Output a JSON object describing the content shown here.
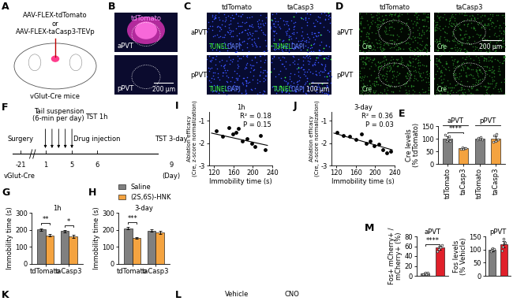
{
  "figure": {
    "panel_letters": [
      "A",
      "B",
      "C",
      "D",
      "E",
      "F",
      "G",
      "H",
      "I",
      "J",
      "K",
      "L",
      "M"
    ],
    "A": {
      "vectors": [
        "AAV-FLEX-tdTomato",
        "or",
        "AAV-FLEX-taCasp3-TEVp"
      ],
      "mouse": "vGlut-Cre mice"
    },
    "B": {
      "title": "tdTomato",
      "rows": [
        "aPVT",
        "pPVT"
      ],
      "scale": "200 μm"
    },
    "C": {
      "columns": [
        "tdTomato",
        "taCasp3"
      ],
      "rows": [
        "aPVT",
        "pPVT"
      ],
      "stain": [
        "TUNEL",
        "DAPI"
      ],
      "scale": "100 μm"
    },
    "D": {
      "columns": [
        "tdTomato",
        "taCasp3"
      ],
      "rows": [
        "aPVT",
        "pPVT"
      ],
      "stain": "Cre",
      "scale": "200 μm"
    },
    "F": {
      "strain": "vGlut-Cre",
      "days": [
        -21,
        1,
        5,
        6,
        9
      ],
      "unit": "(Day)",
      "tail_suspension": {
        "text": "Tail suspension\n(6-min per day)",
        "days": [
          1,
          2,
          3,
          4,
          5
        ]
      },
      "events": [
        {
          "text": "Surgery",
          "day": -21
        },
        {
          "text": "Drug injection",
          "day": 6
        },
        {
          "text": "TST 1h",
          "day": 6
        },
        {
          "text": "TST 3-day",
          "day": 9
        }
      ]
    },
    "bottom_texts": [
      "Vehicle",
      "CNO"
    ]
  },
  "chart_data": [
    {
      "panel": "E",
      "type": "bar",
      "ylabel": "Cre levels\n(% tdTomato)",
      "categories": [
        "tdTomato",
        "taCasp3",
        "tdTomato",
        "taCasp3"
      ],
      "group_labels": [
        "aPVT",
        "pPVT"
      ],
      "values": [
        100,
        62,
        100,
        100
      ],
      "errors": [
        9,
        4,
        3,
        9
      ],
      "colors": [
        "#808080",
        "#f4a340",
        "#808080",
        "#f4a340"
      ],
      "points": [
        [
          115,
          92,
          96,
          108,
          90
        ],
        [
          58,
          66,
          60,
          64,
          63
        ],
        [
          96,
          103,
          99,
          105,
          98
        ],
        [
          88,
          112,
          92,
          118,
          96
        ]
      ],
      "ylim": [
        0,
        150
      ],
      "yticks": [
        0,
        50,
        100,
        150
      ],
      "annotations": [
        {
          "text": "****",
          "between": [
            0,
            1
          ],
          "y": 125
        }
      ]
    },
    {
      "panel": "G",
      "type": "bar",
      "title": "1h",
      "ylabel": "Immobility time (s)",
      "categories": [
        "tdTomato",
        "taCasp3"
      ],
      "series": [
        {
          "name": "Saline",
          "color": "#808080",
          "values": [
            202,
            192
          ],
          "errors": [
            8,
            7
          ]
        },
        {
          "name": "(2S,6S)-HNK",
          "color": "#f4a340",
          "values": [
            168,
            160
          ],
          "errors": [
            7,
            9
          ]
        }
      ],
      "ylim": [
        0,
        300
      ],
      "yticks": [
        0,
        100,
        200,
        300
      ],
      "annotations": [
        {
          "text": "**",
          "category": 0,
          "y": 240
        },
        {
          "text": "*",
          "category": 1,
          "y": 228
        }
      ]
    },
    {
      "panel": "H",
      "type": "bar",
      "title": "3-day",
      "ylabel": "Immobility time (s)",
      "categories": [
        "tdTomato",
        "taCasp3"
      ],
      "series": [
        {
          "name": "Saline",
          "color": "#808080",
          "values": [
            210,
            195
          ],
          "errors": [
            9,
            8
          ]
        },
        {
          "name": "(2S,6S)-HNK",
          "color": "#f4a340",
          "values": [
            152,
            185
          ],
          "errors": [
            6,
            10
          ]
        }
      ],
      "ylim": [
        0,
        300
      ],
      "yticks": [
        0,
        100,
        200,
        300
      ],
      "legend": "upper right",
      "annotations": [
        {
          "text": "***",
          "category": 0,
          "y": 245
        }
      ]
    },
    {
      "panel": "I",
      "type": "scatter",
      "title": "1h",
      "xlabel": "Immobility time (s)",
      "ylabel": "Ablation efficacy\n(Cre, z-score normalization)",
      "color": "#000000",
      "x": [
        125,
        138,
        150,
        158,
        165,
        170,
        178,
        188,
        198,
        205,
        215,
        226
      ],
      "values": [
        -1.45,
        -1.7,
        -1.3,
        -1.6,
        -1.5,
        -1.35,
        -1.9,
        -1.8,
        -2.0,
        -2.15,
        -1.65,
        -2.3
      ],
      "trend": {
        "x": [
          115,
          230
        ],
        "values": [
          -1.55,
          -2.1
        ]
      },
      "annotations": [
        "R² = 0.18",
        "P = 0.15"
      ],
      "xlim": [
        110,
        240
      ],
      "xticks": [
        120,
        160,
        200,
        240
      ],
      "ylim": [
        -3,
        -0.6
      ],
      "yticks": [
        -3,
        -2,
        -1
      ]
    },
    {
      "panel": "J",
      "type": "scatter",
      "title": "3-day",
      "xlabel": "Immobility time (s)",
      "ylabel": "Ablation efficacy\n(Cre, z-score normalization)",
      "color": "#000000",
      "x": [
        122,
        135,
        148,
        160,
        172,
        182,
        190,
        198,
        208,
        215,
        224,
        232
      ],
      "values": [
        -1.5,
        -1.65,
        -1.7,
        -1.85,
        -1.6,
        -2.0,
        -1.9,
        -2.1,
        -2.05,
        -2.3,
        -2.45,
        -2.35
      ],
      "trend": {
        "x": [
          115,
          235
        ],
        "values": [
          -1.55,
          -2.3
        ]
      },
      "annotations": [
        "R² = 0.36",
        "P = 0.03"
      ],
      "xlim": [
        110,
        240
      ],
      "xticks": [
        120,
        160,
        200,
        240
      ],
      "ylim": [
        -3,
        -0.6
      ],
      "yticks": [
        -3,
        -2,
        -1
      ]
    },
    {
      "panel": "M",
      "type": "bar",
      "title": "aPVT",
      "ylabel": "Fos+ mCherry+ /\nmCherry+ (%)",
      "categories": [
        null,
        null
      ],
      "tick_labels": "y",
      "values": [
        5,
        57
      ],
      "errors": [
        1.5,
        4
      ],
      "colors": [
        "#808080",
        "#e0202a"
      ],
      "points": [
        [
          3,
          5,
          6,
          4,
          7
        ],
        [
          50,
          55,
          60,
          58,
          62
        ]
      ],
      "ylim": [
        0,
        80
      ],
      "yticks": [
        0,
        20,
        40,
        60,
        80
      ],
      "annotations": [
        {
          "text": "****",
          "between": [
            0,
            1
          ],
          "y": 64
        }
      ]
    },
    {
      "type": "bar",
      "title": "pPVT",
      "ylabel": "Fos levels\n(% Vehicle)",
      "categories": [
        null,
        null
      ],
      "tick_labels": "y",
      "values": [
        100,
        120
      ],
      "errors": [
        6,
        12
      ],
      "colors": [
        "#808080",
        "#e0202a"
      ],
      "points": [
        [
          92,
          98,
          105,
          100,
          103
        ],
        [
          95,
          110,
          140,
          130,
          125
        ]
      ],
      "ylim": [
        0,
        150
      ],
      "yticks": [
        0,
        50,
        100,
        150
      ]
    }
  ]
}
